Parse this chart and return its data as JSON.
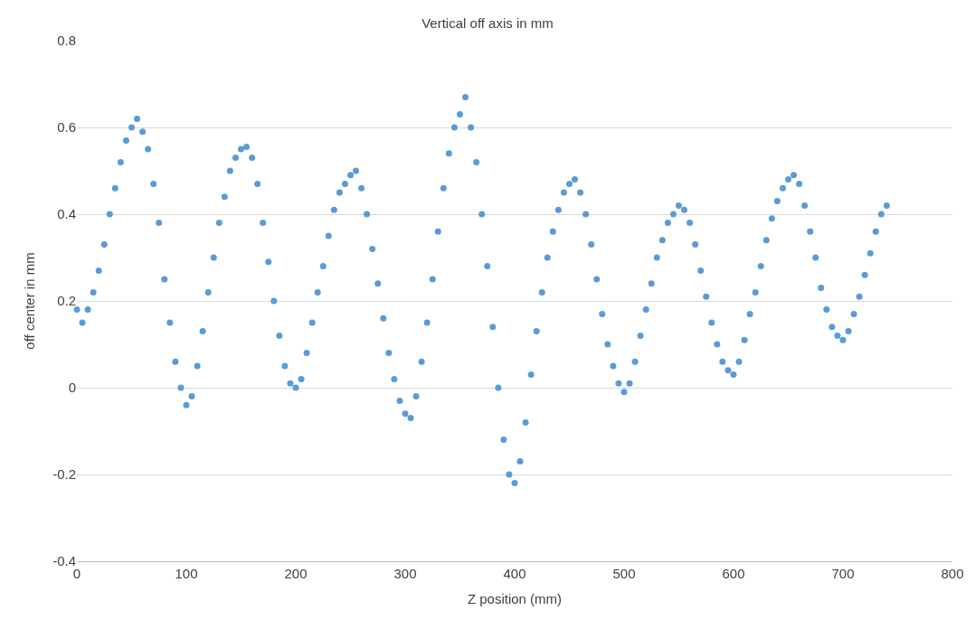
{
  "chart_data": {
    "type": "scatter",
    "title": "Vertical off axis in mm",
    "xlabel": "Z position (mm)",
    "ylabel": "off center in mm",
    "x": [
      0,
      5,
      10,
      15,
      20,
      25,
      30,
      35,
      40,
      45,
      50,
      55,
      60,
      65,
      70,
      75,
      80,
      85,
      90,
      95,
      100,
      105,
      110,
      115,
      120,
      125,
      130,
      135,
      140,
      145,
      150,
      155,
      160,
      165,
      170,
      175,
      180,
      185,
      190,
      195,
      200,
      205,
      210,
      215,
      220,
      225,
      230,
      235,
      240,
      245,
      250,
      255,
      260,
      265,
      270,
      275,
      280,
      285,
      290,
      295,
      300,
      305,
      310,
      315,
      320,
      325,
      330,
      335,
      340,
      345,
      350,
      355,
      360,
      365,
      370,
      375,
      380,
      385,
      390,
      395,
      400,
      405,
      410,
      415,
      420,
      425,
      430,
      435,
      440,
      445,
      450,
      455,
      460,
      465,
      470,
      475,
      480,
      485,
      490,
      495,
      500,
      505,
      510,
      515,
      520,
      525,
      530,
      535,
      540,
      545,
      550,
      555,
      560,
      565,
      570,
      575,
      580,
      585,
      590,
      595,
      600,
      605,
      610,
      615,
      620,
      625,
      630,
      635,
      640,
      645,
      650,
      655,
      660,
      665,
      670,
      675,
      680,
      685,
      690,
      695,
      700,
      705,
      710,
      715,
      720,
      725,
      730,
      735,
      740
    ],
    "series": [
      {
        "color": "#5b9bd5",
        "values": [
          0.18,
          0.15,
          0.18,
          0.22,
          0.27,
          0.33,
          0.4,
          0.46,
          0.52,
          0.57,
          0.6,
          0.62,
          0.59,
          0.55,
          0.47,
          0.38,
          0.25,
          0.15,
          0.06,
          0.0,
          -0.04,
          -0.02,
          0.05,
          0.13,
          0.22,
          0.3,
          0.38,
          0.44,
          0.5,
          0.53,
          0.55,
          0.555,
          0.53,
          0.47,
          0.38,
          0.29,
          0.2,
          0.12,
          0.05,
          0.01,
          0.0,
          0.02,
          0.08,
          0.15,
          0.22,
          0.28,
          0.35,
          0.41,
          0.45,
          0.47,
          0.49,
          0.5,
          0.46,
          0.4,
          0.32,
          0.24,
          0.16,
          0.08,
          0.02,
          -0.03,
          -0.06,
          -0.07,
          -0.02,
          0.06,
          0.15,
          0.25,
          0.36,
          0.46,
          0.54,
          0.6,
          0.63,
          0.67,
          0.6,
          0.52,
          0.4,
          0.28,
          0.14,
          0.0,
          -0.12,
          -0.2,
          -0.22,
          -0.17,
          -0.08,
          0.03,
          0.13,
          0.22,
          0.3,
          0.36,
          0.41,
          0.45,
          0.47,
          0.48,
          0.45,
          0.4,
          0.33,
          0.25,
          0.17,
          0.1,
          0.05,
          0.01,
          -0.01,
          0.01,
          0.06,
          0.12,
          0.18,
          0.24,
          0.3,
          0.34,
          0.38,
          0.4,
          0.42,
          0.41,
          0.38,
          0.33,
          0.27,
          0.21,
          0.15,
          0.1,
          0.06,
          0.04,
          0.03,
          0.06,
          0.11,
          0.17,
          0.22,
          0.28,
          0.34,
          0.39,
          0.43,
          0.46,
          0.48,
          0.49,
          0.47,
          0.42,
          0.36,
          0.3,
          0.23,
          0.18,
          0.14,
          0.12,
          0.11,
          0.13,
          0.17,
          0.21,
          0.26,
          0.31,
          0.36,
          0.4,
          0.42
        ]
      }
    ],
    "xlim": [
      0,
      800
    ],
    "xticks": [
      0,
      100,
      200,
      300,
      400,
      500,
      600,
      700,
      800
    ],
    "ylim": [
      -0.4,
      0.8
    ],
    "yticks": [
      {
        "value": -0.4,
        "label": "-0.4"
      },
      {
        "value": -0.2,
        "label": "-0.2"
      },
      0,
      {
        "value": 0.2,
        "label": "0.2"
      },
      {
        "value": 0.4,
        "label": "0.4"
      },
      {
        "value": 0.6,
        "label": "0.6"
      },
      {
        "value": 0.8,
        "label": "0.8"
      }
    ],
    "grid": "y",
    "marker": "circle"
  }
}
